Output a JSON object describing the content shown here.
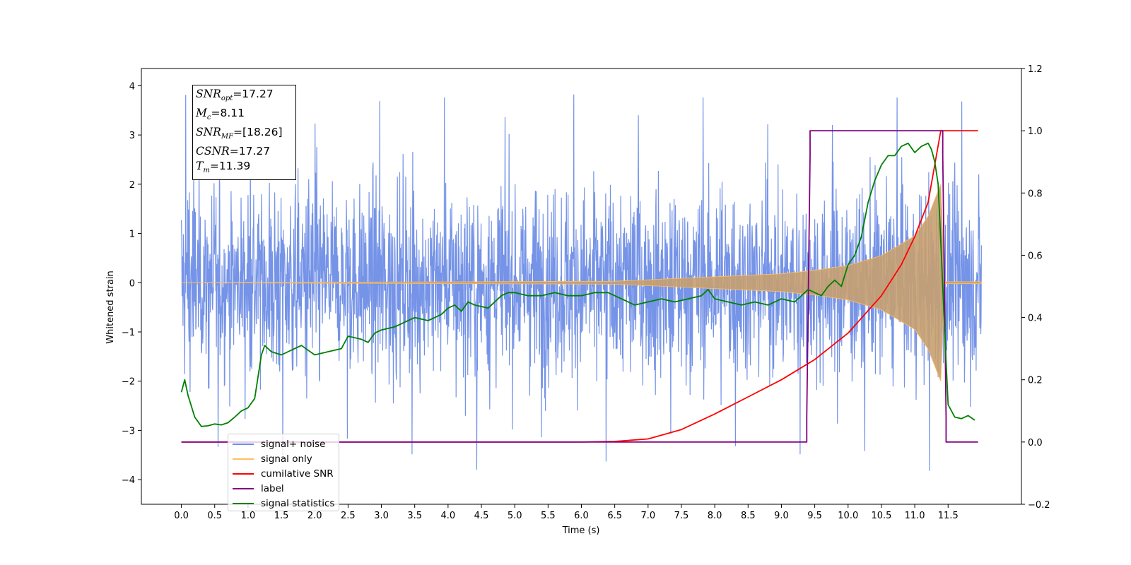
{
  "chart_data": {
    "type": "line",
    "xlabel": "Time (s)",
    "ylabel": "Whitened strain",
    "xlim": [
      -0.6,
      12.6
    ],
    "ylim": [
      -4.5,
      4.35
    ],
    "y2lim": [
      -0.2,
      1.2
    ],
    "xticks": [
      "0.0",
      "0.5",
      "1.0",
      "1.5",
      "2.0",
      "2.5",
      "3.0",
      "3.5",
      "4.0",
      "4.5",
      "5.0",
      "5.5",
      "6.0",
      "6.5",
      "7.0",
      "7.5",
      "8.0",
      "8.5",
      "9.0",
      "9.5",
      "10.0",
      "10.5",
      "11.0",
      "11.5"
    ],
    "yticks": [
      "4",
      "3",
      "2",
      "1",
      "0",
      "−1",
      "−2",
      "−3",
      "−4"
    ],
    "y2ticks": [
      "1.2",
      "1.0",
      "0.8",
      "0.6",
      "0.4",
      "0.2",
      "0.0",
      "−0.2"
    ],
    "grid": false,
    "legend_position": "lower-left",
    "annotations": [
      {
        "var": "SNR",
        "sub": "opt",
        "value": "=17.27"
      },
      {
        "var": "M",
        "sub": "c",
        "value": "=8.11"
      },
      {
        "var": "SNR",
        "sub": "MF",
        "value": "=[18.26]"
      },
      {
        "var": "CSNR",
        "sub": "",
        "value": "=17.27"
      },
      {
        "var": "T",
        "sub": "m",
        "value": "=11.39"
      }
    ],
    "series": [
      {
        "name": "signal+ noise",
        "axis": "left",
        "color": "#6e8de6",
        "description_data": {
          "x_range": [
            0.0,
            12.0
          ],
          "std": 1.0,
          "extremes": [
            -4.1,
            3.95
          ]
        }
      },
      {
        "name": "signal only",
        "axis": "left",
        "color": "#ffbf60",
        "envelope": {
          "x": [
            0.0,
            6.5,
            7.0,
            8.0,
            9.0,
            9.5,
            10.0,
            10.5,
            11.0,
            11.2,
            11.39,
            11.45,
            12.0
          ],
          "amp": [
            0.0,
            0.03,
            0.06,
            0.12,
            0.18,
            0.25,
            0.35,
            0.55,
            0.95,
            1.35,
            2.0,
            0.02,
            0.02
          ]
        }
      },
      {
        "name": "cumilative SNR",
        "axis": "right",
        "color": "#ff0000",
        "x": [
          0.0,
          6.0,
          6.5,
          7.0,
          7.5,
          8.0,
          8.5,
          9.0,
          9.5,
          10.0,
          10.5,
          10.8,
          11.0,
          11.2,
          11.39,
          11.5,
          11.95
        ],
        "y": [
          0.0,
          0.0,
          0.002,
          0.01,
          0.04,
          0.09,
          0.145,
          0.2,
          0.265,
          0.35,
          0.47,
          0.57,
          0.66,
          0.77,
          1.0,
          1.0,
          1.0
        ]
      },
      {
        "name": "label",
        "axis": "right",
        "color": "#800080",
        "x": [
          0.0,
          9.38,
          9.38,
          9.43,
          9.43,
          11.42,
          11.42,
          11.47,
          11.47,
          11.95
        ],
        "y": [
          0.0,
          0.0,
          0.08,
          0.92,
          1.0,
          1.0,
          0.92,
          0.08,
          0.0,
          0.0
        ]
      },
      {
        "name": "signal statistics",
        "axis": "right",
        "color": "#008000",
        "x": [
          0.0,
          0.05,
          0.1,
          0.2,
          0.3,
          0.4,
          0.5,
          0.6,
          0.7,
          0.8,
          0.9,
          1.0,
          1.1,
          1.2,
          1.25,
          1.35,
          1.5,
          1.6,
          1.7,
          1.8,
          2.0,
          2.2,
          2.4,
          2.5,
          2.7,
          2.8,
          2.9,
          3.0,
          3.2,
          3.4,
          3.5,
          3.7,
          3.9,
          4.0,
          4.1,
          4.2,
          4.3,
          4.4,
          4.6,
          4.8,
          4.9,
          5.0,
          5.2,
          5.4,
          5.6,
          5.8,
          6.0,
          6.2,
          6.4,
          6.6,
          6.8,
          7.0,
          7.2,
          7.4,
          7.6,
          7.8,
          7.9,
          8.0,
          8.2,
          8.4,
          8.6,
          8.8,
          9.0,
          9.2,
          9.3,
          9.4,
          9.6,
          9.7,
          9.8,
          9.9,
          10.0,
          10.1,
          10.2,
          10.3,
          10.4,
          10.5,
          10.6,
          10.7,
          10.8,
          10.9,
          11.0,
          11.1,
          11.2,
          11.25,
          11.3,
          11.35,
          11.4,
          11.45,
          11.5,
          11.6,
          11.7,
          11.8,
          11.9
        ],
        "y": [
          0.16,
          0.2,
          0.15,
          0.08,
          0.05,
          0.052,
          0.058,
          0.055,
          0.062,
          0.08,
          0.1,
          0.11,
          0.14,
          0.28,
          0.31,
          0.29,
          0.28,
          0.29,
          0.3,
          0.31,
          0.28,
          0.29,
          0.3,
          0.34,
          0.33,
          0.32,
          0.35,
          0.36,
          0.37,
          0.39,
          0.4,
          0.39,
          0.41,
          0.43,
          0.44,
          0.42,
          0.45,
          0.44,
          0.43,
          0.47,
          0.48,
          0.48,
          0.47,
          0.47,
          0.48,
          0.47,
          0.47,
          0.48,
          0.48,
          0.46,
          0.44,
          0.45,
          0.46,
          0.45,
          0.46,
          0.47,
          0.49,
          0.46,
          0.45,
          0.44,
          0.45,
          0.44,
          0.46,
          0.45,
          0.47,
          0.49,
          0.47,
          0.5,
          0.52,
          0.5,
          0.57,
          0.6,
          0.66,
          0.77,
          0.84,
          0.89,
          0.92,
          0.92,
          0.95,
          0.96,
          0.93,
          0.95,
          0.96,
          0.94,
          0.9,
          0.83,
          0.6,
          0.35,
          0.12,
          0.08,
          0.075,
          0.085,
          0.07
        ]
      }
    ]
  }
}
